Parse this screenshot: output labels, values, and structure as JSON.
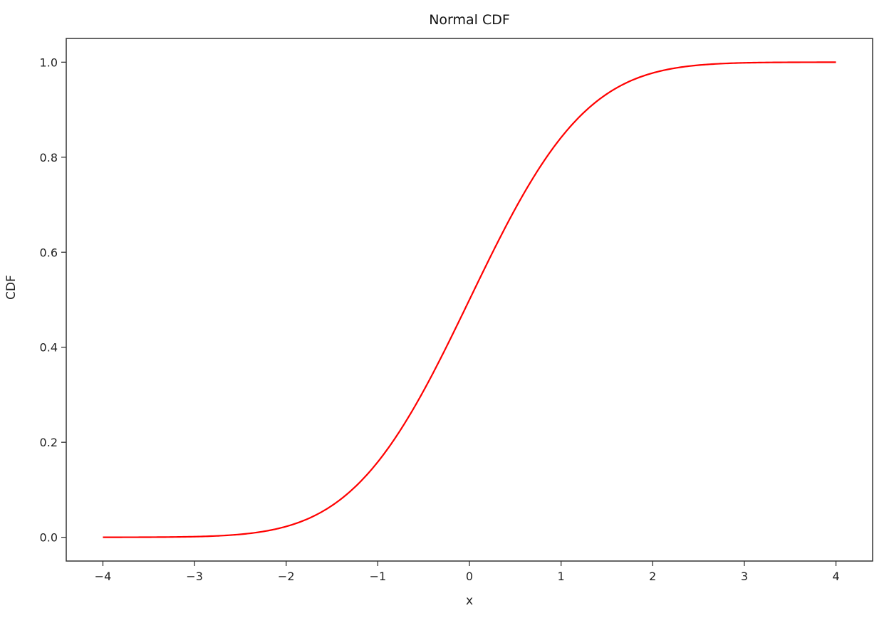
{
  "chart_data": {
    "type": "line",
    "title": "Normal CDF",
    "xlabel": "x",
    "ylabel": "CDF",
    "xlim": [
      -4.4,
      4.4
    ],
    "ylim": [
      -0.05,
      1.05
    ],
    "grid": false,
    "legend": null,
    "x_ticks": [
      -4,
      -3,
      -2,
      -1,
      0,
      1,
      2,
      3,
      4
    ],
    "x_tick_labels": [
      "−4",
      "−3",
      "−2",
      "−1",
      "0",
      "1",
      "2",
      "3",
      "4"
    ],
    "y_ticks": [
      0.0,
      0.2,
      0.4,
      0.6,
      0.8,
      1.0
    ],
    "y_tick_labels": [
      "0.0",
      "0.2",
      "0.4",
      "0.6",
      "0.8",
      "1.0"
    ],
    "series": [
      {
        "name": "Normal CDF",
        "color": "#ff0000",
        "x": [
          -4,
          -3.5,
          -3,
          -2.5,
          -2,
          -1.5,
          -1,
          -0.5,
          0,
          0.5,
          1,
          1.5,
          2,
          2.5,
          3,
          3.5,
          4
        ],
        "y": [
          0.0,
          0.0002,
          0.0013,
          0.0062,
          0.0228,
          0.0668,
          0.1587,
          0.3085,
          0.5,
          0.6915,
          0.8413,
          0.9332,
          0.9772,
          0.9938,
          0.9987,
          0.9998,
          1.0
        ]
      }
    ]
  }
}
